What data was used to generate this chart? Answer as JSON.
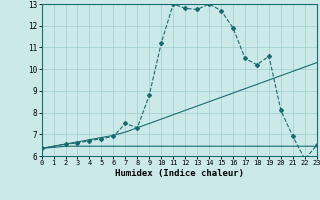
{
  "title": "",
  "xlabel": "Humidex (Indice chaleur)",
  "ylabel": "",
  "bg_color": "#cce9ea",
  "grid_color": "#a0cdd0",
  "line_color": "#1a6b6e",
  "xlim": [
    0,
    23
  ],
  "ylim": [
    6,
    13
  ],
  "xticks": [
    0,
    1,
    2,
    3,
    4,
    5,
    6,
    7,
    8,
    9,
    10,
    11,
    12,
    13,
    14,
    15,
    16,
    17,
    18,
    19,
    20,
    21,
    22,
    23
  ],
  "yticks": [
    6,
    7,
    8,
    9,
    10,
    11,
    12,
    13
  ],
  "series": [
    {
      "x": [
        0,
        2,
        3,
        4,
        5,
        6,
        7,
        8,
        9,
        10,
        11,
        12,
        13,
        14,
        15,
        16,
        17,
        18,
        19,
        20,
        21,
        22,
        23
      ],
      "y": [
        6.35,
        6.45,
        6.45,
        6.45,
        6.45,
        6.45,
        6.45,
        6.45,
        6.45,
        6.45,
        6.45,
        6.45,
        6.45,
        6.45,
        6.45,
        6.45,
        6.45,
        6.45,
        6.45,
        6.45,
        6.45,
        6.45,
        6.45
      ],
      "marker": null,
      "linestyle": "-",
      "linewidth": 0.8
    },
    {
      "x": [
        0,
        2,
        3,
        4,
        5,
        6,
        7,
        8,
        9,
        10,
        11,
        12,
        13,
        14,
        15,
        16,
        17,
        18,
        19,
        20,
        21,
        22,
        23
      ],
      "y": [
        6.35,
        6.55,
        6.65,
        6.75,
        6.85,
        6.95,
        7.1,
        7.3,
        7.5,
        7.7,
        7.9,
        8.1,
        8.3,
        8.5,
        8.7,
        8.9,
        9.1,
        9.3,
        9.5,
        9.7,
        9.9,
        10.1,
        10.3
      ],
      "marker": null,
      "linestyle": "-",
      "linewidth": 0.8
    },
    {
      "x": [
        0,
        2,
        3,
        4,
        5,
        6,
        7,
        8,
        9,
        10,
        11,
        12,
        13,
        14,
        15,
        16,
        17,
        18,
        19,
        20,
        21,
        22,
        23
      ],
      "y": [
        6.35,
        6.55,
        6.6,
        6.7,
        6.8,
        6.9,
        7.5,
        7.3,
        8.8,
        11.2,
        13.0,
        12.8,
        12.75,
        13.0,
        12.7,
        11.9,
        10.5,
        10.2,
        10.6,
        8.1,
        6.9,
        5.85,
        6.5
      ],
      "marker": "D",
      "markersize": 2.0,
      "linestyle": "--",
      "linewidth": 0.8
    }
  ]
}
